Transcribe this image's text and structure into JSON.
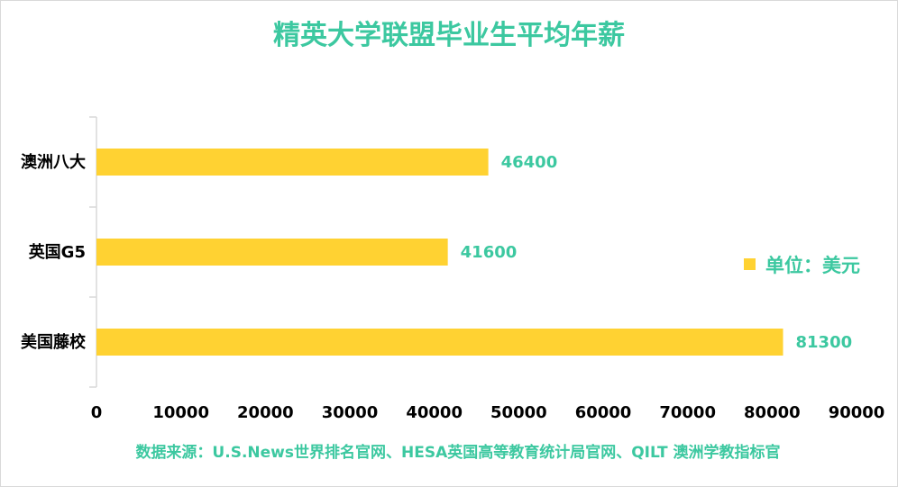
{
  "chart_data": {
    "type": "bar",
    "orientation": "horizontal",
    "title": "精英大学联盟毕业生平均年薪",
    "categories": [
      "澳洲八大",
      "英国G5",
      "美国藤校"
    ],
    "series": [
      {
        "name": "单位：美元",
        "values": [
          46400,
          41600,
          81300
        ],
        "color": "#FFD232"
      }
    ],
    "data_labels": [
      "46400",
      "41600",
      "81300"
    ],
    "xlim": [
      0,
      90000
    ],
    "x_ticks": [
      0,
      10000,
      20000,
      30000,
      40000,
      50000,
      60000,
      70000,
      80000,
      90000
    ],
    "x_tick_labels": [
      "0",
      "10000",
      "20000",
      "30000",
      "40000",
      "50000",
      "60000",
      "70000",
      "80000",
      "90000"
    ],
    "grid": false,
    "legend": {
      "position": "right",
      "label": "单位：美元"
    },
    "source": "数据来源：U.S.News世界排名官网、HESA英国高等教育统计局官网、QILT 澳洲学教指标官"
  },
  "colors": {
    "accent": "#3CC8A0",
    "bar": "#FFD232",
    "axis": "#D9D9D9",
    "text": "#000000"
  }
}
